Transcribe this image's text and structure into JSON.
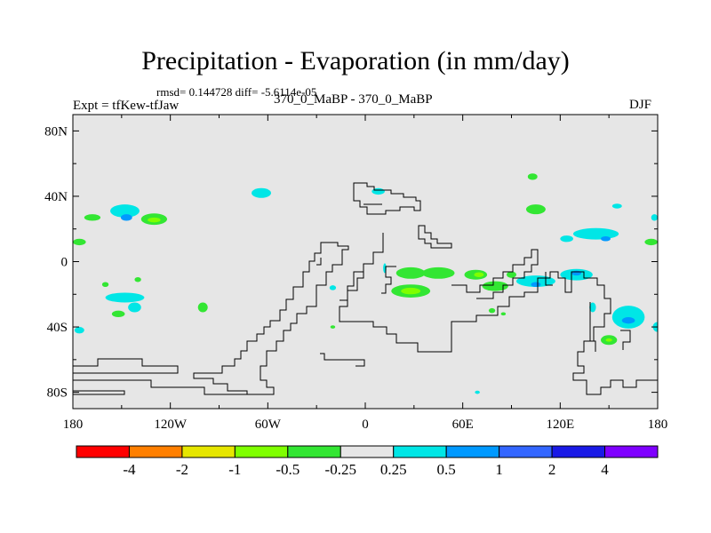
{
  "title": "Precipitation - Evaporation (in mm/day)",
  "stats": "rmsd= 0.144728 diff= -5.6114e-05",
  "expt": "Expt = tfKew-tfJaw",
  "case": "370_0_MaBP - 370_0_MaBP",
  "season": "DJF",
  "chart_data": {
    "type": "heatmap",
    "title": "Precipitation - Evaporation (in mm/day)",
    "xlim": [
      -180,
      180
    ],
    "ylim": [
      -90,
      90
    ],
    "x_ticks": [
      {
        "value": -180,
        "label": "180"
      },
      {
        "value": -120,
        "label": "120W"
      },
      {
        "value": -60,
        "label": "60W"
      },
      {
        "value": 0,
        "label": "0"
      },
      {
        "value": 60,
        "label": "60E"
      },
      {
        "value": 120,
        "label": "120E"
      },
      {
        "value": 180,
        "label": "180"
      }
    ],
    "y_ticks": [
      {
        "value": 80,
        "label": "80N"
      },
      {
        "value": 40,
        "label": "40N"
      },
      {
        "value": 0,
        "label": "0"
      },
      {
        "value": -40,
        "label": "40S"
      },
      {
        "value": -80,
        "label": "80S"
      }
    ],
    "background_color": "#e6e6e6",
    "colorbar": {
      "colors": [
        "#ff0000",
        "#ff7f00",
        "#e6e600",
        "#7fff00",
        "#33e633",
        "#e6e6e6",
        "#00e6e6",
        "#0099ff",
        "#3366ff",
        "#1a1ae6",
        "#7f00ff"
      ],
      "labels": [
        "-4",
        "-2",
        "-1",
        "-0.5",
        "-0.25",
        "0.25",
        "0.5",
        "1",
        "2",
        "4"
      ]
    },
    "patches": [
      {
        "lon": -148,
        "lat": 31,
        "rlon": 9,
        "rlat": 4,
        "color": "#00e6e6"
      },
      {
        "lon": -147,
        "lat": 27,
        "rlon": 3.5,
        "rlat": 2,
        "color": "#0099ff"
      },
      {
        "lon": -130,
        "lat": 26,
        "rlon": 8,
        "rlat": 3.5,
        "color": "#33e633"
      },
      {
        "lon": -130,
        "lat": 25.5,
        "rlon": 4,
        "rlat": 1.5,
        "color": "#7fff00"
      },
      {
        "lon": -168,
        "lat": 27,
        "rlon": 5,
        "rlat": 2,
        "color": "#33e633"
      },
      {
        "lon": -176,
        "lat": 12,
        "rlon": 4,
        "rlat": 2,
        "color": "#33e633"
      },
      {
        "lon": -176,
        "lat": -42,
        "rlon": 3,
        "rlat": 2,
        "color": "#00e6e6"
      },
      {
        "lon": -148,
        "lat": -22,
        "rlon": 12,
        "rlat": 3,
        "color": "#00e6e6"
      },
      {
        "lon": -142,
        "lat": -28,
        "rlon": 4,
        "rlat": 3,
        "color": "#00e6e6"
      },
      {
        "lon": -152,
        "lat": -32,
        "rlon": 4,
        "rlat": 2,
        "color": "#33e633"
      },
      {
        "lon": -160,
        "lat": -14,
        "rlon": 2,
        "rlat": 1.5,
        "color": "#33e633"
      },
      {
        "lon": -140,
        "lat": -11,
        "rlon": 2,
        "rlat": 1.5,
        "color": "#33e633"
      },
      {
        "lon": -100,
        "lat": -28,
        "rlon": 3,
        "rlat": 3,
        "color": "#33e633"
      },
      {
        "lon": -64,
        "lat": 42,
        "rlon": 6,
        "rlat": 3,
        "color": "#00e6e6"
      },
      {
        "lon": -20,
        "lat": -16,
        "rlon": 2,
        "rlat": 1.5,
        "color": "#00e6e6"
      },
      {
        "lon": -20,
        "lat": -40,
        "rlon": 1.5,
        "rlat": 1,
        "color": "#33e633"
      },
      {
        "lon": 8,
        "lat": 43,
        "rlon": 4,
        "rlat": 2,
        "color": "#00e6e6"
      },
      {
        "lon": 12,
        "lat": -4,
        "rlon": 1,
        "rlat": 3,
        "color": "#00e6e6"
      },
      {
        "lon": 28,
        "lat": -7,
        "rlon": 9,
        "rlat": 3.5,
        "color": "#33e633"
      },
      {
        "lon": 28,
        "lat": -18,
        "rlon": 12,
        "rlat": 4,
        "color": "#33e633"
      },
      {
        "lon": 28,
        "lat": -18,
        "rlon": 6,
        "rlat": 2,
        "color": "#7fff00"
      },
      {
        "lon": 45,
        "lat": -7,
        "rlon": 10,
        "rlat": 3.5,
        "color": "#33e633"
      },
      {
        "lon": 68,
        "lat": -8,
        "rlon": 7,
        "rlat": 3,
        "color": "#33e633"
      },
      {
        "lon": 70,
        "lat": -8,
        "rlon": 3,
        "rlat": 1.5,
        "color": "#7fff00"
      },
      {
        "lon": 80,
        "lat": -15,
        "rlon": 8,
        "rlat": 3,
        "color": "#33e633"
      },
      {
        "lon": 90,
        "lat": -8,
        "rlon": 3,
        "rlat": 2,
        "color": "#33e633"
      },
      {
        "lon": 78,
        "lat": -30,
        "rlon": 2,
        "rlat": 1.5,
        "color": "#33e633"
      },
      {
        "lon": 85,
        "lat": -32,
        "rlon": 1.5,
        "rlat": 1,
        "color": "#33e633"
      },
      {
        "lon": 105,
        "lat": -12,
        "rlon": 12,
        "rlat": 3.5,
        "color": "#00e6e6"
      },
      {
        "lon": 105,
        "lat": -14,
        "rlon": 3,
        "rlat": 1.5,
        "color": "#0099ff"
      },
      {
        "lon": 130,
        "lat": -8,
        "rlon": 10,
        "rlat": 3.5,
        "color": "#00e6e6"
      },
      {
        "lon": 130,
        "lat": -7,
        "rlon": 3,
        "rlat": 1.5,
        "color": "#0099ff"
      },
      {
        "lon": 105,
        "lat": 32,
        "rlon": 6,
        "rlat": 3,
        "color": "#33e633"
      },
      {
        "lon": 103,
        "lat": 52,
        "rlon": 3,
        "rlat": 2,
        "color": "#33e633"
      },
      {
        "lon": 142,
        "lat": 17,
        "rlon": 14,
        "rlat": 3.5,
        "color": "#00e6e6"
      },
      {
        "lon": 148,
        "lat": 14,
        "rlon": 3,
        "rlat": 1.5,
        "color": "#0099ff"
      },
      {
        "lon": 124,
        "lat": 14,
        "rlon": 4,
        "rlat": 2,
        "color": "#00e6e6"
      },
      {
        "lon": 176,
        "lat": 12,
        "rlon": 4,
        "rlat": 2,
        "color": "#33e633"
      },
      {
        "lon": 178,
        "lat": 27,
        "rlon": 2,
        "rlat": 2,
        "color": "#00e6e6"
      },
      {
        "lon": 155,
        "lat": 34,
        "rlon": 3,
        "rlat": 1.5,
        "color": "#00e6e6"
      },
      {
        "lon": 162,
        "lat": -34,
        "rlon": 10,
        "rlat": 7,
        "color": "#00e6e6"
      },
      {
        "lon": 162,
        "lat": -36,
        "rlon": 4,
        "rlat": 2,
        "color": "#0099ff"
      },
      {
        "lon": 150,
        "lat": -48,
        "rlon": 5,
        "rlat": 3,
        "color": "#33e633"
      },
      {
        "lon": 150,
        "lat": -48,
        "rlon": 2,
        "rlat": 1,
        "color": "#7fff00"
      },
      {
        "lon": 180,
        "lat": -40,
        "rlon": 3,
        "rlat": 3,
        "color": "#00e6e6"
      },
      {
        "lon": 140,
        "lat": -28,
        "rlon": 2,
        "rlat": 3,
        "color": "#00e6e6"
      },
      {
        "lon": 69,
        "lat": -80,
        "rlon": 1.5,
        "rlat": 1,
        "color": "#00e6e6"
      }
    ]
  }
}
